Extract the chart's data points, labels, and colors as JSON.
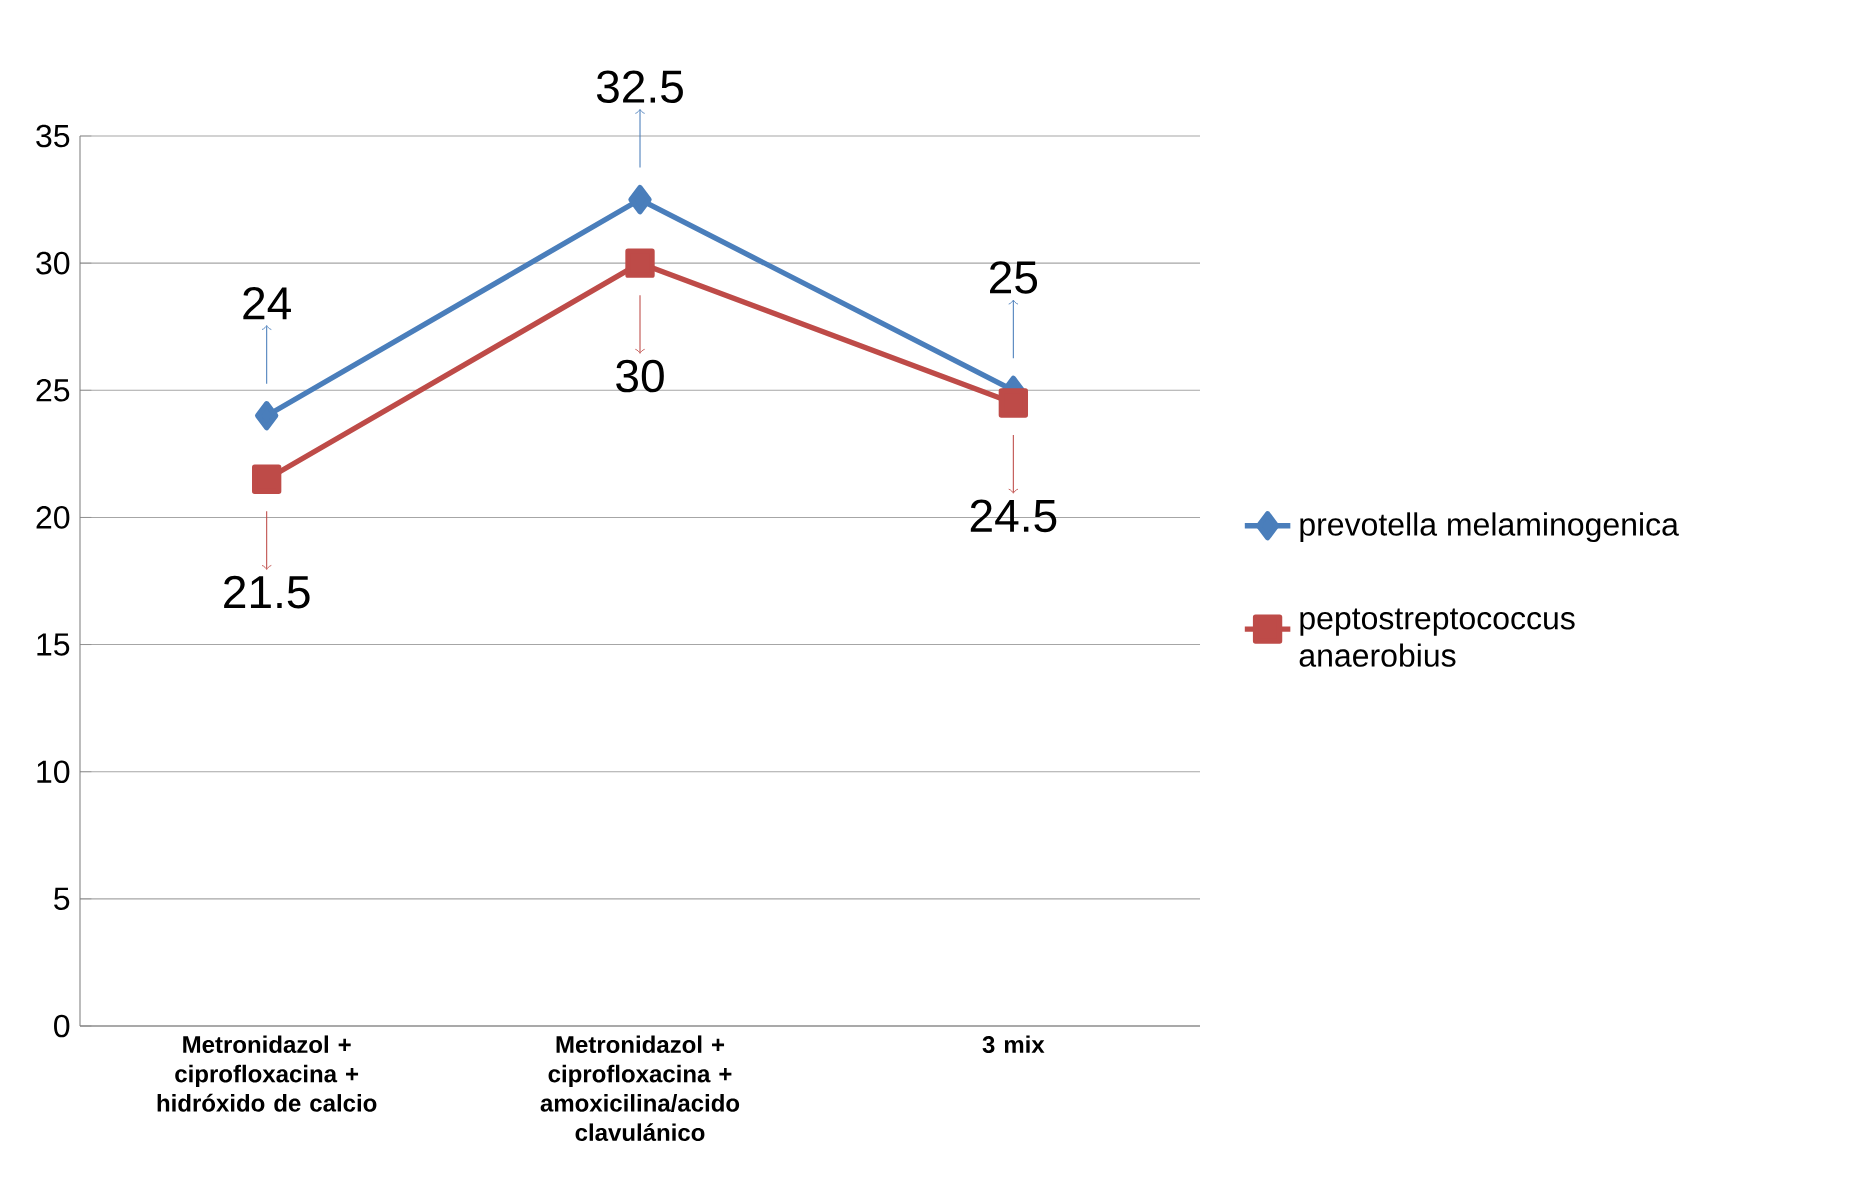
{
  "chart_data": {
    "type": "line",
    "categories": [
      "Metronidazol + ciprofloxacina + hidróxido de calcio",
      "Metronidazol + ciprofloxacina + amoxicilina/acido clavulánico",
      "3 mix"
    ],
    "series": [
      {
        "name": "prevotella melaminogenica",
        "color": "#4a7ebb",
        "marker": "diamond",
        "values": [
          24,
          32.5,
          25
        ],
        "value_labels": [
          "24",
          "32.5",
          "25"
        ]
      },
      {
        "name": "peptostreptococcus anaerobius",
        "color": "#be4b48",
        "marker": "square",
        "values": [
          21.5,
          30,
          24.5
        ],
        "value_labels": [
          "21.5",
          "30",
          "24.5"
        ]
      }
    ],
    "ylim": [
      0,
      35
    ],
    "yticks": [
      0,
      5,
      10,
      15,
      20,
      25,
      30,
      35
    ],
    "grid": "y",
    "legend": "right",
    "line_style": "solid"
  }
}
